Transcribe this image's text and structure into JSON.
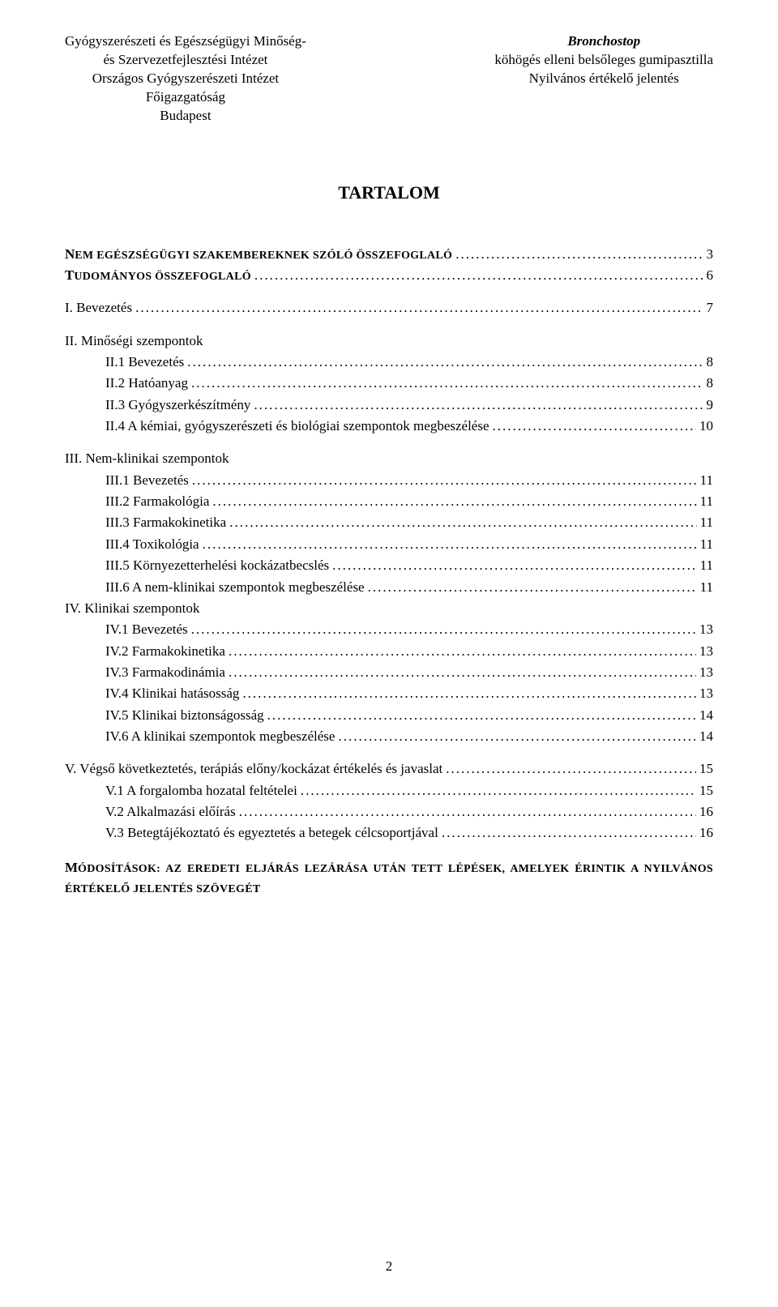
{
  "header": {
    "left_lines": [
      "Gyógyszerészeti és Egészségügyi Minőség-",
      "és Szervezetfejlesztési Intézet",
      "Országos Gyógyszerészeti Intézet",
      "Főigazgatóság",
      "Budapest"
    ],
    "right_brand": "Bronchostop",
    "right_lines": [
      "köhögés elleni belsőleges gumipasztilla",
      "Nyilvános értékelő jelentés"
    ]
  },
  "title": "TARTALOM",
  "toc": [
    {
      "style": "caps",
      "label_caps": "N",
      "label_rest": "EM EGÉSZSÉGÜGYI SZAKEMBEREKNEK SZÓLÓ ÖSSZEFOGLALÓ",
      "page": "3",
      "indent": 0
    },
    {
      "style": "caps",
      "label_caps": "T",
      "label_rest": "UDOMÁNYOS ÖSSZEFOGLALÓ",
      "page": "6",
      "indent": 0
    },
    {
      "style": "normal",
      "label": "I. Bevezetés",
      "page": "7",
      "indent": 0,
      "spacer_before": true
    },
    {
      "style": "nolead",
      "label": "II. Minőségi szempontok",
      "indent": 0,
      "spacer_before": true
    },
    {
      "style": "normal",
      "label": "II.1 Bevezetés",
      "page": "8",
      "indent": 1
    },
    {
      "style": "normal",
      "label": "II.2 Hatóanyag",
      "page": "8",
      "indent": 1
    },
    {
      "style": "normal",
      "label": "II.3 Gyógyszerkészítmény",
      "page": "9",
      "indent": 1
    },
    {
      "style": "normal",
      "label": "II.4 A kémiai, gyógyszerészeti és biológiai szempontok megbeszélése",
      "page": "10",
      "indent": 1
    },
    {
      "style": "nolead",
      "label": "III. Nem-klinikai szempontok",
      "indent": 0,
      "spacer_before": true
    },
    {
      "style": "normal",
      "label": "III.1 Bevezetés",
      "page": "11",
      "indent": 1
    },
    {
      "style": "normal",
      "label": "III.2 Farmakológia",
      "page": "11",
      "indent": 1
    },
    {
      "style": "normal",
      "label": "III.3 Farmakokinetika",
      "page": "11",
      "indent": 1
    },
    {
      "style": "normal",
      "label": "III.4 Toxikológia",
      "page": "11",
      "indent": 1
    },
    {
      "style": "normal",
      "label": "III.5 Környezetterhelési kockázatbecslés",
      "page": "11",
      "indent": 1
    },
    {
      "style": "normal",
      "label": "III.6 A nem-klinikai szempontok megbeszélése",
      "page": "11",
      "indent": 1
    },
    {
      "style": "nolead",
      "label": "IV. Klinikai szempontok",
      "indent": 0
    },
    {
      "style": "normal",
      "label": "IV.1 Bevezetés",
      "page": "13",
      "indent": 1
    },
    {
      "style": "normal",
      "label": "IV.2 Farmakokinetika",
      "page": "13",
      "indent": 1
    },
    {
      "style": "normal",
      "label": "IV.3 Farmakodinámia",
      "page": "13",
      "indent": 1
    },
    {
      "style": "normal",
      "label": "IV.4 Klinikai hatásosság",
      "page": "13",
      "indent": 1
    },
    {
      "style": "normal",
      "label": "IV.5 Klinikai biztonságosság",
      "page": "14",
      "indent": 1
    },
    {
      "style": "normal",
      "label": "IV.6 A klinikai szempontok megbeszélése",
      "page": "14",
      "indent": 1
    },
    {
      "style": "normal",
      "label": "V. Végső következtetés, terápiás előny/kockázat értékelés és javaslat",
      "page": "15",
      "indent": 0,
      "spacer_before": true
    },
    {
      "style": "normal",
      "label": "V.1 A forgalomba hozatal feltételei",
      "page": "15",
      "indent": 1
    },
    {
      "style": "normal",
      "label": "V.2 Alkalmazási előírás",
      "page": "16",
      "indent": 1
    },
    {
      "style": "normal",
      "label": "V.3 Betegtájékoztató és egyeztetés a betegek célcsoportjával",
      "page": "16",
      "indent": 1
    }
  ],
  "footer_caps": {
    "first": "M",
    "rest": "ÓDOSÍTÁSOK: AZ EREDETI ELJÁRÁS LEZÁRÁSA UTÁN TETT LÉPÉSEK, AMELYEK ÉRINTIK A NYILVÁNOS ÉRTÉKELŐ JELENTÉS SZÖVEGÉT"
  },
  "page_number": "2"
}
